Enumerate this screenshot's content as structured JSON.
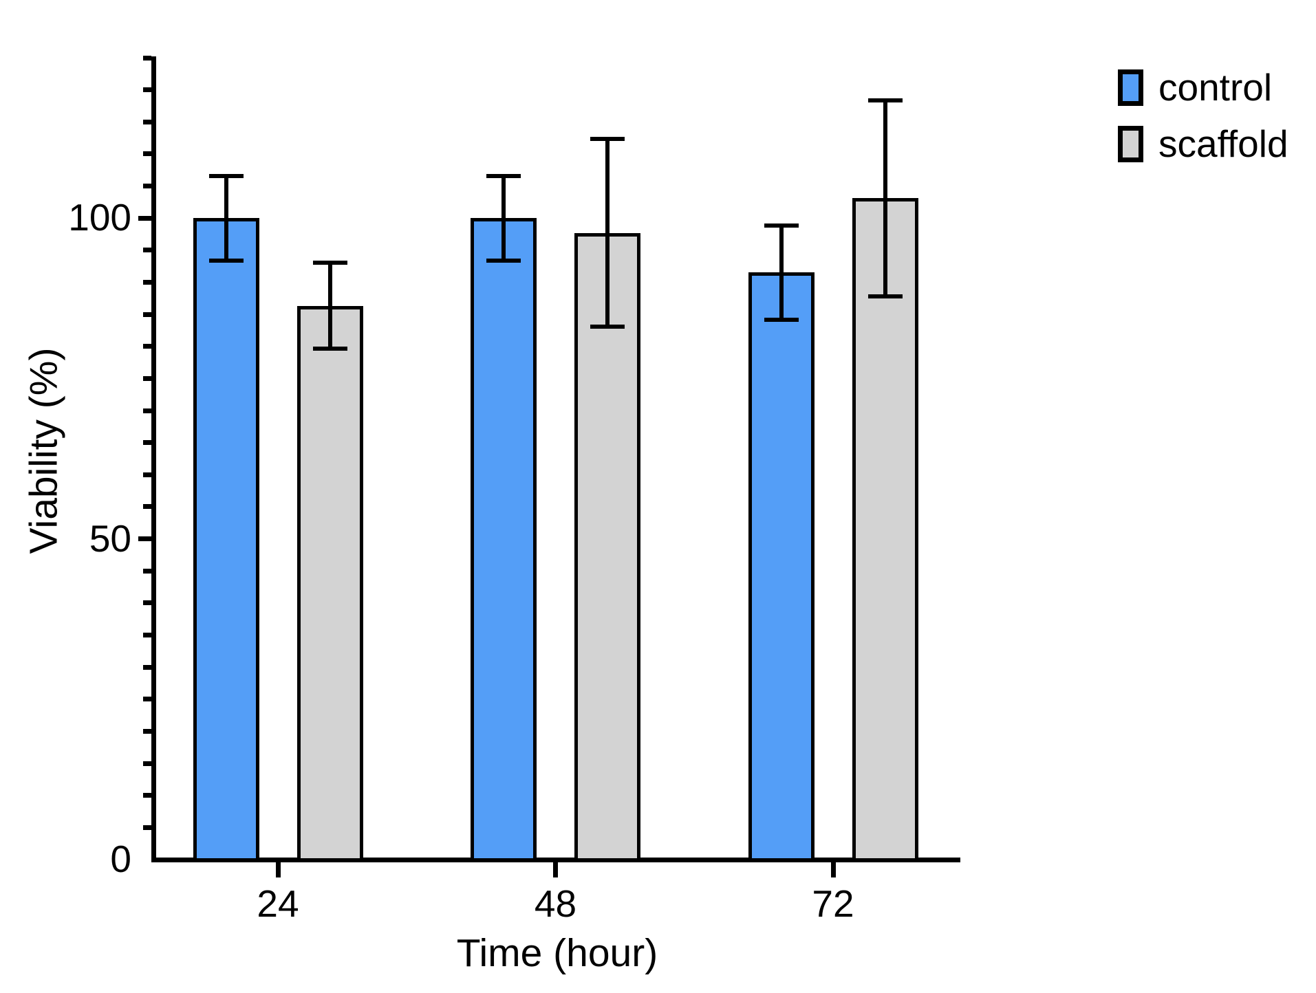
{
  "chart_data": {
    "type": "bar",
    "title": "",
    "xlabel": "Time (hour)",
    "ylabel": "Viability (%)",
    "categories": [
      "24",
      "48",
      "72"
    ],
    "series": [
      {
        "name": "control",
        "color": "#549EF7",
        "values": [
          100.0,
          100.0,
          91.5
        ],
        "errors": [
          6.6,
          6.6,
          7.3
        ]
      },
      {
        "name": "scaffold",
        "color": "#D3D3D3",
        "values": [
          86.3,
          97.7,
          103.1
        ],
        "errors": [
          6.7,
          14.6,
          15.3
        ]
      }
    ],
    "ylim": [
      0,
      125
    ],
    "yticks": [
      0,
      50,
      100
    ],
    "minor_tick_step": 5,
    "grid": false,
    "legend_position": "top-right",
    "bar_border_color": "#000000",
    "error_bar_color": "#000000",
    "axis_color": "#000000"
  }
}
